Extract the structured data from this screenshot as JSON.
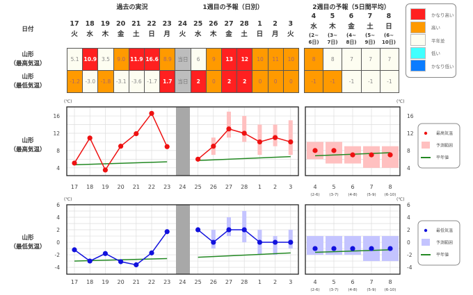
{
  "headers": {
    "past": "過去の実況",
    "week1": "1週目の予報（日別）",
    "week2": "2週目の予報（5日間平均）",
    "date_label": "日付"
  },
  "rows": {
    "high": "山形\n（最高気温）",
    "low": "山形\n（最低気温）"
  },
  "days": [
    {
      "d": "17",
      "w": "火"
    },
    {
      "d": "18",
      "w": "水"
    },
    {
      "d": "19",
      "w": "木"
    },
    {
      "d": "20",
      "w": "金"
    },
    {
      "d": "21",
      "w": "土"
    },
    {
      "d": "22",
      "w": "日"
    },
    {
      "d": "23",
      "w": "月"
    },
    {
      "d": "24",
      "w": "火"
    },
    {
      "d": "25",
      "w": "水"
    },
    {
      "d": "26",
      "w": "木"
    },
    {
      "d": "27",
      "w": "金"
    },
    {
      "d": "28",
      "w": "土"
    },
    {
      "d": "1",
      "w": "日"
    },
    {
      "d": "2",
      "w": "月"
    },
    {
      "d": "3",
      "w": "火"
    }
  ],
  "week2_days": [
    {
      "d": "4",
      "w": "水",
      "r1": "(2~",
      "r2": "6日)",
      "short": "(2-6)"
    },
    {
      "d": "5",
      "w": "木",
      "r1": "(3~",
      "r2": "7日)",
      "short": "(3-7)"
    },
    {
      "d": "6",
      "w": "金",
      "r1": "(4~",
      "r2": "8日)",
      "short": "(4-8)"
    },
    {
      "d": "7",
      "w": "土",
      "r1": "(5~",
      "r2": "9日)",
      "short": "(5-9)"
    },
    {
      "d": "8",
      "w": "日",
      "r1": "(6~",
      "r2": "10日)",
      "short": "(6-10)"
    }
  ],
  "table": {
    "high": [
      [
        "5.1",
        "pale"
      ],
      [
        "10.9",
        "red"
      ],
      [
        "3.5",
        "pale"
      ],
      [
        "9.0",
        "orange"
      ],
      [
        "11.9",
        "red"
      ],
      [
        "16.6",
        "red"
      ],
      [
        "8.9",
        "orange"
      ],
      [
        "当日",
        "gray"
      ],
      [
        "6",
        "pale"
      ],
      [
        "9",
        "orange"
      ],
      [
        "13",
        "red"
      ],
      [
        "12",
        "red"
      ],
      [
        "10",
        "orange"
      ],
      [
        "11",
        "orange"
      ],
      [
        "10",
        "orange"
      ]
    ],
    "high_w2": [
      [
        "8",
        "orange"
      ],
      [
        "8",
        "pale"
      ],
      [
        "7",
        "pale"
      ],
      [
        "7",
        "pale"
      ],
      [
        "7",
        "pale"
      ]
    ],
    "low": [
      [
        "-1.2",
        "orange"
      ],
      [
        "-3.0",
        "pale"
      ],
      [
        "-1.8",
        "orange"
      ],
      [
        "-3.1",
        "pale"
      ],
      [
        "-3.6",
        "pale"
      ],
      [
        "-1.7",
        "pale"
      ],
      [
        "1.7",
        "red"
      ],
      [
        "当日",
        "gray"
      ],
      [
        "2",
        "red"
      ],
      [
        "0",
        "orange"
      ],
      [
        "2",
        "red"
      ],
      [
        "2",
        "red"
      ],
      [
        "0",
        "orange"
      ],
      [
        "0",
        "orange"
      ],
      [
        "0",
        "orange"
      ]
    ],
    "low_w2": [
      [
        "-1",
        "orange"
      ],
      [
        "-1",
        "orange"
      ],
      [
        "-1",
        "pale"
      ],
      [
        "-1",
        "pale"
      ],
      [
        "-1",
        "pale"
      ]
    ]
  },
  "legend": [
    {
      "label": "かなり高い",
      "color": "#ff2020"
    },
    {
      "label": "高い",
      "color": "#ff9a00"
    },
    {
      "label": "平年並",
      "color": "#fdfdf1"
    },
    {
      "label": "低い",
      "color": "#40ffff"
    },
    {
      "label": "かなり低い",
      "color": "#0a7cff"
    }
  ],
  "chart_data": [
    {
      "type": "line",
      "title": "山形（最高気温）",
      "unit": "(℃)",
      "ylim": [
        2.2,
        18.1
      ],
      "yticks": [
        4,
        8,
        12,
        16
      ],
      "color": "#ee1111",
      "range_color": "#ffc0c0",
      "past": [
        5.1,
        10.9,
        3.5,
        9.0,
        11.9,
        16.6,
        8.9
      ],
      "past_normal": [
        4.7,
        5.4
      ],
      "forecast": [
        6,
        9,
        13,
        12,
        10,
        11,
        10
      ],
      "forecast_range": [
        null,
        [
          7,
          11
        ],
        [
          11,
          17
        ],
        [
          10,
          16
        ],
        [
          7,
          14
        ],
        [
          9,
          14
        ],
        [
          7,
          15
        ]
      ],
      "forecast_normal": [
        5.7,
        6.6
      ],
      "week2": [
        8,
        8,
        7,
        7,
        7
      ],
      "week2_range": [
        [
          6,
          10
        ],
        [
          5,
          10
        ],
        [
          5,
          9
        ],
        [
          4,
          9
        ],
        [
          4,
          9
        ]
      ],
      "week2_normal": [
        6.8,
        7.5
      ],
      "legend": [
        "最高気温",
        "予測範囲",
        "平年値"
      ]
    },
    {
      "type": "line",
      "title": "山形（最低気温）",
      "unit": "(℃)",
      "ylim": [
        -5.1,
        6
      ],
      "yticks": [
        -4,
        -2,
        0,
        2,
        4,
        6
      ],
      "color": "#1111dd",
      "range_color": "#c4c4ff",
      "past": [
        -1.2,
        -3.0,
        -1.8,
        -3.1,
        -3.6,
        -1.7,
        1.7
      ],
      "past_normal": [
        -3.0,
        -2.6
      ],
      "forecast": [
        2,
        0,
        2,
        2,
        0,
        0,
        0
      ],
      "forecast_range": [
        null,
        [
          -1,
          2
        ],
        [
          1,
          4
        ],
        [
          0,
          5
        ],
        [
          -2,
          2
        ],
        [
          -2,
          1
        ],
        [
          -1,
          2
        ]
      ],
      "forecast_normal": [
        -2.4,
        -1.7
      ],
      "week2": [
        -1,
        -1,
        -1,
        -1,
        -1
      ],
      "week2_range": [
        [
          -2,
          1
        ],
        [
          -2,
          1
        ],
        [
          -2,
          1
        ],
        [
          -3,
          1
        ],
        [
          -3,
          1
        ]
      ],
      "week2_normal": [
        -1.6,
        -1.2
      ],
      "legend": [
        "最低気温",
        "予測範囲",
        "平年値"
      ]
    }
  ]
}
